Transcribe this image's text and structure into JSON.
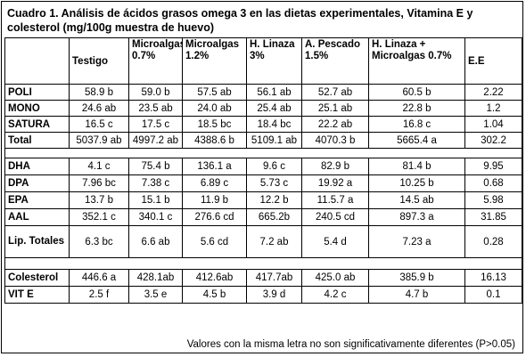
{
  "title": "Cuadro 1. Análisis de ácidos grasos omega 3 en las dietas experimentales, Vitamina E y colesterol (mg/100g muestra de huevo)",
  "headers": [
    "",
    "Testigo",
    "Microalgas 0.7%",
    "Microalgas 1.2%",
    "H. Linaza 3%",
    "A. Pescado 1.5%",
    "H. Linaza + Microalgas 0.7%",
    "E.E"
  ],
  "rows_group1": [
    {
      "label": "POLI",
      "values": [
        "58.9 b",
        "59.0 b",
        "57.5 ab",
        "56.1 ab",
        "52.7 ab",
        "60.5 b",
        "2.22"
      ]
    },
    {
      "label": "MONO",
      "values": [
        "24.6 ab",
        "23.5 ab",
        "24.0 ab",
        "25.4 ab",
        "25.1 ab",
        "22.8 b",
        "1.2"
      ]
    },
    {
      "label": "SATURA",
      "values": [
        "16.5 c",
        "17.5 c",
        "18.5 bc",
        "18.4 bc",
        "22.2 ab",
        "16.8 c",
        "1.04"
      ]
    },
    {
      "label": "Total",
      "values": [
        "5037.9 ab",
        "4997.2 ab",
        "4388.6 b",
        "5109.1 ab",
        "4070.3 b",
        "5665.4 a",
        "302.2"
      ]
    }
  ],
  "rows_group2": [
    {
      "label": "DHA",
      "values": [
        "4.1 c",
        "75.4 b",
        "136.1 a",
        "9.6 c",
        "82.9 b",
        "81.4 b",
        "9.95"
      ]
    },
    {
      "label": "DPA",
      "values": [
        "7.96 bc",
        "7.38 c",
        "6.89 c",
        "5.73 c",
        "19.92 a",
        "10.25 b",
        "0.68"
      ]
    },
    {
      "label": "EPA",
      "values": [
        "13.7 b",
        "15.1 b",
        "11.9 b",
        "12.2 b",
        "11.5.7 a",
        "14.5 ab",
        "5.98"
      ]
    },
    {
      "label": "AAL",
      "values": [
        "352.1 c",
        "340.1 c",
        "276.6 cd",
        "665.2b",
        "240.5 cd",
        "897.3 a",
        "31.85"
      ]
    },
    {
      "label": "Lip. Totales",
      "values": [
        "6.3 bc",
        "6.6 ab",
        "5.6 cd",
        "7.2 ab",
        "5.4 d",
        "7.23 a",
        "0.28"
      ]
    }
  ],
  "rows_group3": [
    {
      "label": "Colesterol",
      "values": [
        "446.6 a",
        "428.1ab",
        "412.6ab",
        "417.7ab",
        "425.0 ab",
        "385.9 b",
        "16.13"
      ]
    },
    {
      "label": "VIT E",
      "values": [
        "2.5 f",
        "3.5 e",
        "4.5 b",
        "3.9 d",
        "4.2 c",
        "4.7 b",
        "0.1"
      ]
    }
  ],
  "footnote": "Valores con la misma letra no son significativamente diferentes (P>0.05)"
}
